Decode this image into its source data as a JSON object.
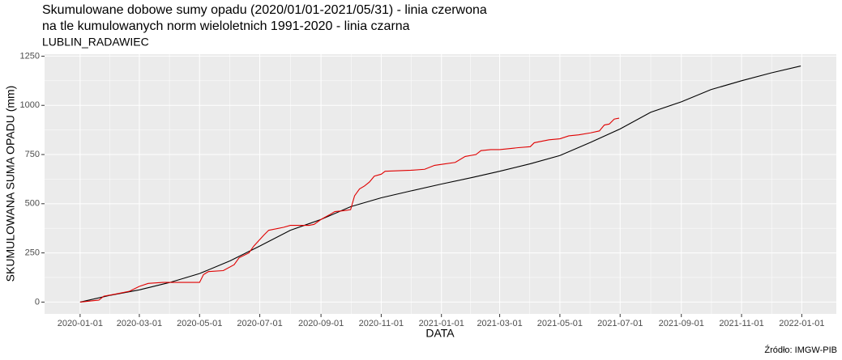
{
  "chart_data": {
    "type": "line",
    "title": [
      "Skumulowane dobowe sumy opadu (2020/01/01-2021/05/31) - linia czerwona",
      "na tle kumulowanych norm wieloletnich 1991-2020 - linia czarna"
    ],
    "subtitle": "LUBLIN_RADAWIEC",
    "x_label": "DATA",
    "y_label": "SKUMULOWANA SUMA OPADU (mm)",
    "caption": "Źródło: IMGW-PIB",
    "grid": true,
    "xlim": [
      "2019-11-26",
      "2022-02-05"
    ],
    "xticks": [
      "2020-01-01",
      "2020-03-01",
      "2020-05-01",
      "2020-07-01",
      "2020-09-01",
      "2020-11-01",
      "2021-01-01",
      "2021-03-01",
      "2021-05-01",
      "2021-07-01",
      "2021-09-01",
      "2021-11-01",
      "2022-01-01"
    ],
    "ylim": [
      -60,
      1260
    ],
    "yticks": [
      0,
      250,
      500,
      750,
      1000,
      1250
    ],
    "series": [
      {
        "color": "#000000",
        "x": [
          "2020-01-01",
          "2020-02-01",
          "2020-03-01",
          "2020-04-01",
          "2020-05-01",
          "2020-06-01",
          "2020-07-01",
          "2020-08-01",
          "2020-09-01",
          "2020-10-01",
          "2020-11-01",
          "2020-12-01",
          "2021-01-01",
          "2021-02-01",
          "2021-03-01",
          "2021-04-01",
          "2021-05-01",
          "2021-06-01",
          "2021-07-01",
          "2021-08-01",
          "2021-09-01",
          "2021-10-01",
          "2021-11-01",
          "2021-12-01",
          "2021-12-31"
        ],
        "values": [
          0,
          35,
          62,
          100,
          145,
          210,
          285,
          365,
          420,
          485,
          530,
          565,
          600,
          633,
          665,
          703,
          745,
          812,
          880,
          965,
          1018,
          1080,
          1125,
          1165,
          1200
        ]
      },
      {
        "color": "#e00000",
        "x": [
          "2020-01-01",
          "2020-01-20",
          "2020-01-25",
          "2020-02-05",
          "2020-02-20",
          "2020-03-01",
          "2020-03-10",
          "2020-03-25",
          "2020-04-15",
          "2020-05-01",
          "2020-05-05",
          "2020-05-10",
          "2020-05-25",
          "2020-06-05",
          "2020-06-10",
          "2020-06-20",
          "2020-06-25",
          "2020-07-05",
          "2020-07-10",
          "2020-07-25",
          "2020-08-01",
          "2020-08-20",
          "2020-08-25",
          "2020-09-01",
          "2020-09-10",
          "2020-09-15",
          "2020-09-25",
          "2020-10-01",
          "2020-10-05",
          "2020-10-10",
          "2020-10-15",
          "2020-10-20",
          "2020-10-25",
          "2020-11-01",
          "2020-11-05",
          "2020-12-01",
          "2020-12-15",
          "2020-12-25",
          "2021-01-01",
          "2021-01-15",
          "2021-01-25",
          "2021-02-05",
          "2021-02-10",
          "2021-02-20",
          "2021-03-01",
          "2021-03-20",
          "2021-04-01",
          "2021-04-05",
          "2021-04-20",
          "2021-05-01",
          "2021-05-10",
          "2021-05-20",
          "2021-06-01",
          "2021-06-10",
          "2021-06-15",
          "2021-06-20",
          "2021-06-25",
          "2021-06-30"
        ],
        "values": [
          0,
          10,
          30,
          40,
          55,
          80,
          95,
          100,
          100,
          100,
          140,
          155,
          160,
          190,
          225,
          250,
          285,
          340,
          365,
          380,
          390,
          390,
          395,
          420,
          445,
          460,
          465,
          470,
          540,
          575,
          590,
          610,
          640,
          650,
          665,
          670,
          675,
          695,
          700,
          710,
          740,
          750,
          770,
          775,
          775,
          785,
          790,
          810,
          825,
          830,
          845,
          850,
          860,
          870,
          900,
          905,
          930,
          935
        ]
      }
    ]
  }
}
